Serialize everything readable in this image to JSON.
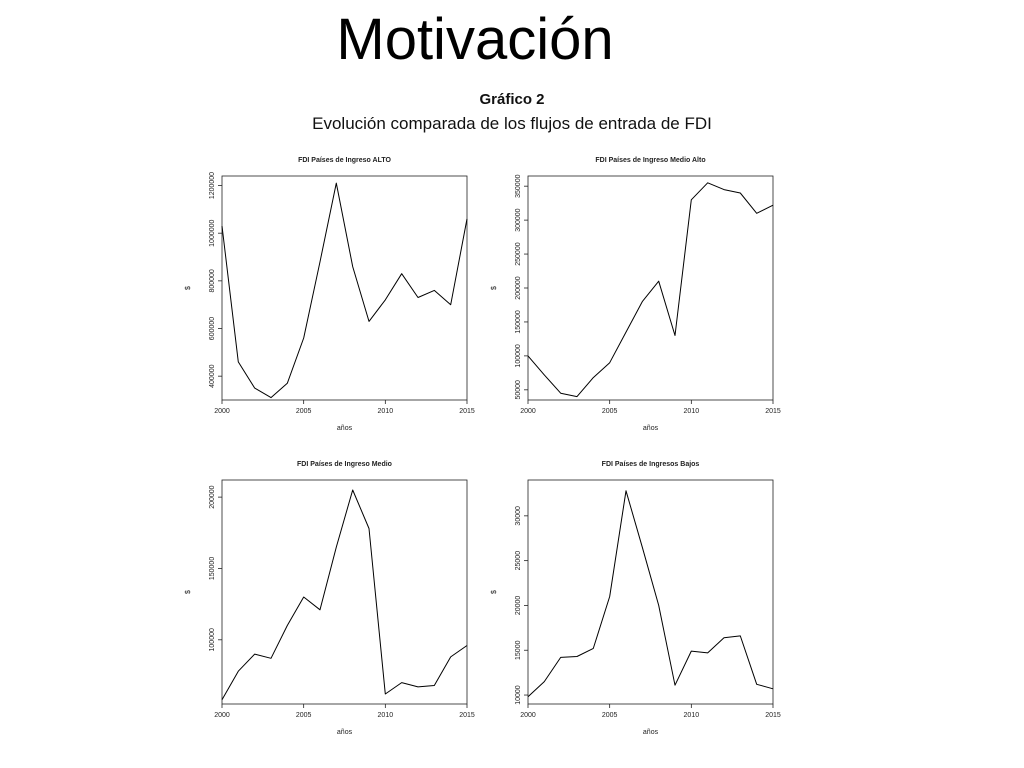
{
  "slide": {
    "title": "Motivación",
    "figure_label": "Gráfico 2",
    "figure_title": "Evolución comparada de los flujos de entrada de FDI"
  },
  "chart_data": [
    {
      "type": "line",
      "title": "FDI Países de Ingreso ALTO",
      "xlabel": "años",
      "ylabel": "$",
      "xlim": [
        2000,
        2015
      ],
      "ylim": [
        300000,
        1240000
      ],
      "xticks": [
        2000,
        2005,
        2010,
        2015
      ],
      "yticks": [
        400000,
        600000,
        800000,
        1000000,
        1200000
      ],
      "x": [
        2000,
        2001,
        2002,
        2003,
        2004,
        2005,
        2006,
        2007,
        2008,
        2009,
        2010,
        2011,
        2012,
        2013,
        2014,
        2015
      ],
      "values": [
        1030000,
        460000,
        350000,
        310000,
        370000,
        560000,
        880000,
        1210000,
        860000,
        630000,
        720000,
        830000,
        730000,
        760000,
        700000,
        1060000
      ],
      "grid": false,
      "color": "#000000"
    },
    {
      "type": "line",
      "title": "FDI Países de Ingreso Medio Alto",
      "xlabel": "años",
      "ylabel": "$",
      "xlim": [
        2000,
        2015
      ],
      "ylim": [
        35000,
        365000
      ],
      "xticks": [
        2000,
        2005,
        2010,
        2015
      ],
      "yticks": [
        50000,
        100000,
        150000,
        200000,
        250000,
        300000,
        350000
      ],
      "x": [
        2000,
        2001,
        2002,
        2003,
        2004,
        2005,
        2006,
        2007,
        2008,
        2009,
        2010,
        2011,
        2012,
        2013,
        2014,
        2015
      ],
      "values": [
        100000,
        72000,
        45000,
        40000,
        68000,
        90000,
        135000,
        180000,
        210000,
        130000,
        330000,
        355000,
        345000,
        340000,
        310000,
        322000
      ],
      "grid": false,
      "color": "#000000"
    },
    {
      "type": "line",
      "title": "FDI Países de Ingreso Medio",
      "xlabel": "años",
      "ylabel": "$",
      "xlim": [
        2000,
        2015
      ],
      "ylim": [
        55000,
        212000
      ],
      "xticks": [
        2000,
        2005,
        2010,
        2015
      ],
      "yticks": [
        100000,
        150000,
        200000
      ],
      "x": [
        2000,
        2001,
        2002,
        2003,
        2004,
        2005,
        2006,
        2007,
        2008,
        2009,
        2010,
        2011,
        2012,
        2013,
        2014,
        2015
      ],
      "values": [
        58000,
        78000,
        90000,
        87000,
        110000,
        130000,
        121000,
        165000,
        205000,
        178000,
        62000,
        70000,
        67000,
        68000,
        88000,
        96000
      ],
      "grid": false,
      "color": "#000000"
    },
    {
      "type": "line",
      "title": "FDI Países de Ingresos Bajos",
      "xlabel": "años",
      "ylabel": "$",
      "xlim": [
        2000,
        2015
      ],
      "ylim": [
        9000,
        34000
      ],
      "xticks": [
        2000,
        2005,
        2010,
        2015
      ],
      "yticks": [
        10000,
        15000,
        20000,
        25000,
        30000
      ],
      "x": [
        2000,
        2001,
        2002,
        2003,
        2004,
        2005,
        2006,
        2007,
        2008,
        2009,
        2010,
        2011,
        2012,
        2013,
        2014,
        2015
      ],
      "values": [
        9800,
        11500,
        14200,
        14300,
        15200,
        21000,
        32800,
        26500,
        20000,
        11100,
        14900,
        14700,
        16400,
        16600,
        11200,
        10700
      ],
      "grid": false,
      "color": "#000000"
    }
  ]
}
